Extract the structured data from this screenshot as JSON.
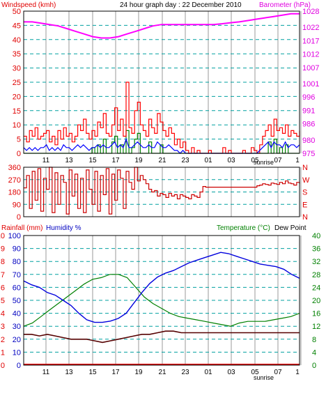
{
  "header": {
    "windspeed_label": "Windspeed (kmh)",
    "title": "24 hour graph day : 22 December 2010",
    "barometer_label": "Barometer (hPa)"
  },
  "lower_header": {
    "rainfall_label": "Rainfall (mm)",
    "humidity_label": "Humidity %",
    "temperature_label": "Temperature (°C)",
    "dewpoint_label": "Dew Point"
  },
  "sunrise_label": "sunrise",
  "colors": {
    "wind_axis": "#e00000",
    "barometer_axis": "#e000e0",
    "wind_gust": "#ff0000",
    "wind_avg": "#0000ff",
    "wind_low": "#008000",
    "barometer": "#ff00ff",
    "direction": "#cc0000",
    "humidity": "#0000dd",
    "temperature": "#008000",
    "dewpoint": "#550000",
    "rainfall_axis": "#e00000",
    "humidity_axis": "#0000c0",
    "temperature_axis": "#008000",
    "grid_vertical": "#9a9a9a",
    "grid_horizontal": "#00a0a0"
  },
  "chart_data": [
    {
      "type": "line",
      "panel": "wind_barometer",
      "x_tick_labels": [
        "11",
        "13",
        "15",
        "17",
        "19",
        "21",
        "23",
        "01",
        "03",
        "05",
        "07",
        "1"
      ],
      "left_axis": {
        "title": "Windspeed (kmh)",
        "ticks": [
          0,
          5,
          10,
          15,
          20,
          25,
          30,
          35,
          40,
          45,
          50
        ],
        "ylim": [
          0,
          50
        ]
      },
      "right_axis": {
        "title": "Barometer (hPa)",
        "ticks": [
          975,
          980,
          986,
          991,
          996,
          1001,
          1007,
          1012,
          1017,
          1022,
          1028
        ],
        "ylim": [
          975,
          1028
        ]
      },
      "grid": true,
      "series": [
        {
          "key": "barometer",
          "values": [
            1024,
            1024,
            1023.5,
            1023,
            1022.5,
            1021.5,
            1020.5,
            1019.5,
            1018.5,
            1018,
            1018,
            1018.5,
            1019.5,
            1020.5,
            1021.5,
            1022.5,
            1023,
            1023,
            1023,
            1023,
            1023,
            1023,
            1023,
            1023.3,
            1023.7,
            1024,
            1024.5,
            1025,
            1025.5,
            1026,
            1026.5,
            1027,
            1027
          ]
        },
        {
          "key": "gust",
          "values": [
            6,
            4,
            8,
            6,
            9,
            5,
            6,
            7,
            8,
            4,
            6,
            3,
            8,
            5,
            9,
            6,
            7,
            4,
            6,
            10,
            8,
            12,
            7,
            5,
            8,
            6,
            11,
            9,
            14,
            7,
            6,
            10,
            16,
            8,
            12,
            6,
            25,
            9,
            7,
            15,
            18,
            10,
            8,
            6,
            12,
            9,
            7,
            14,
            11,
            8,
            6,
            9,
            7,
            3,
            5,
            2,
            4,
            1,
            0,
            2,
            0,
            1,
            0,
            0,
            0,
            1,
            0,
            0,
            0,
            0,
            2,
            0,
            1,
            0,
            0,
            0,
            0,
            1,
            0,
            0,
            2,
            1,
            0,
            3,
            6,
            8,
            10,
            6,
            12,
            8,
            9,
            7,
            10,
            6,
            8,
            7,
            6,
            8
          ]
        },
        {
          "key": "average",
          "values": [
            2,
            1,
            2,
            1,
            2,
            1,
            2,
            2,
            3,
            1,
            2,
            1,
            2,
            1,
            3,
            2,
            2,
            1,
            2,
            3,
            2,
            3,
            2,
            1,
            2,
            2,
            3,
            2,
            3,
            2,
            2,
            3,
            4,
            2,
            3,
            2,
            5,
            2,
            2,
            3,
            4,
            3,
            2,
            2,
            3,
            2,
            2,
            4,
            3,
            2,
            2,
            3,
            2,
            1,
            1,
            0,
            1,
            0,
            0,
            0,
            0,
            0,
            0,
            0,
            0,
            0,
            0,
            0,
            0,
            0,
            0,
            0,
            0,
            0,
            0,
            0,
            0,
            0,
            0,
            0,
            0,
            0,
            0,
            1,
            2,
            3,
            4,
            2,
            4,
            3,
            3,
            2,
            4,
            2,
            3,
            3,
            2,
            3
          ]
        },
        {
          "key": "low",
          "values": [
            0,
            0,
            0,
            0,
            0,
            0,
            0,
            0,
            0,
            0,
            0,
            0,
            0,
            0,
            0,
            0,
            0,
            0,
            0,
            0,
            0,
            0,
            0,
            0,
            2,
            0,
            3,
            0,
            5,
            0,
            0,
            4,
            6,
            0,
            3,
            0,
            8,
            0,
            2,
            5,
            7,
            0,
            0,
            0,
            4,
            0,
            0,
            0,
            3,
            0,
            0,
            0,
            0,
            0,
            0,
            0,
            0,
            0,
            0,
            0,
            0,
            0,
            0,
            0,
            0,
            0,
            0,
            0,
            0,
            0,
            0,
            0,
            0,
            0,
            0,
            0,
            0,
            0,
            0,
            0,
            0,
            0,
            0,
            0,
            0,
            0,
            4,
            0,
            5,
            0,
            2,
            0,
            3,
            0,
            0,
            0,
            0,
            0
          ]
        }
      ]
    },
    {
      "type": "line",
      "panel": "wind_direction",
      "left_axis": {
        "ticks": [
          0,
          90,
          180,
          270,
          360
        ],
        "ylim": [
          0,
          360
        ]
      },
      "right_axis": {
        "labels": [
          "N",
          "W",
          "S",
          "E",
          "N"
        ]
      },
      "grid": true,
      "series": [
        {
          "key": "direction",
          "values": [
            210,
            300,
            60,
            330,
            120,
            350,
            40,
            280,
            200,
            360,
            30,
            320,
            90,
            300,
            250,
            20,
            340,
            150,
            310,
            60,
            280,
            30,
            340,
            200,
            90,
            330,
            40,
            300,
            160,
            350,
            20,
            310,
            120,
            340,
            280,
            60,
            330,
            250,
            200,
            360,
            260,
            300,
            270,
            240,
            200,
            180,
            190,
            150,
            170,
            160,
            140,
            170,
            150,
            160,
            130,
            160,
            150,
            140,
            130,
            160,
            150,
            140,
            180,
            220,
            215,
            215,
            215,
            215,
            215,
            215,
            215,
            215,
            215,
            215,
            215,
            215,
            215,
            215,
            215,
            215,
            215,
            215,
            225,
            230,
            240,
            235,
            230,
            245,
            240,
            235,
            250,
            240,
            260,
            245,
            240,
            230,
            250,
            240
          ]
        }
      ]
    },
    {
      "type": "line",
      "panel": "humidity_temperature",
      "left_axis_rainfall": {
        "title": "Rainfall (mm)",
        "ticks": [
          0,
          1,
          2,
          3,
          4,
          5,
          6,
          7,
          8,
          9,
          10
        ],
        "ylim": [
          0,
          10
        ]
      },
      "left_axis_humidity": {
        "title": "Humidity %",
        "ticks": [
          0,
          10,
          20,
          30,
          40,
          50,
          60,
          70,
          80,
          90,
          100
        ],
        "ylim": [
          0,
          100
        ]
      },
      "right_axis": {
        "title": "Temperature (°C)",
        "ticks": [
          0,
          4,
          8,
          12,
          16,
          20,
          24,
          28,
          32,
          36,
          40
        ],
        "ylim": [
          0,
          40
        ]
      },
      "grid": true,
      "series": [
        {
          "key": "humidity",
          "values": [
            65,
            62,
            60,
            56,
            54,
            50,
            46,
            40,
            35,
            33,
            33,
            34,
            36,
            40,
            48,
            56,
            63,
            68,
            71,
            73,
            76,
            79,
            81,
            83,
            85,
            87,
            86,
            84,
            82,
            80,
            78,
            77,
            76,
            74,
            70,
            67
          ]
        },
        {
          "key": "temperature",
          "values": [
            12,
            13,
            15,
            17,
            19,
            21,
            23,
            25,
            26.5,
            27,
            28,
            28,
            27,
            24,
            21,
            19,
            17.5,
            16,
            15,
            14.5,
            14,
            13.5,
            13,
            12.5,
            12,
            13,
            13.5,
            13.5,
            13.5,
            14,
            14.5,
            15,
            16
          ]
        },
        {
          "key": "dewpoint",
          "values": [
            9.5,
            9.5,
            9,
            9.5,
            9,
            8.5,
            8,
            8,
            8,
            7.5,
            7,
            7.5,
            8,
            8.5,
            9,
            9.5,
            9.5,
            10,
            10.5,
            10.5,
            10,
            10,
            10,
            10,
            10,
            10,
            10,
            10,
            10,
            10,
            10,
            10,
            10,
            10,
            10,
            10
          ]
        }
      ]
    }
  ]
}
